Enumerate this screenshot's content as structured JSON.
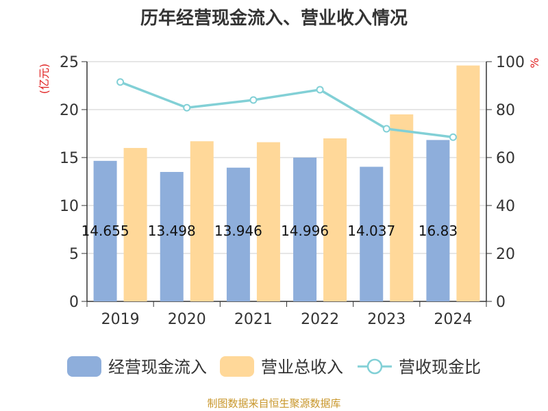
{
  "colors": {
    "bar1": "#8eaedb",
    "bar2": "#ffd899",
    "line": "#82d0d6",
    "axis": "#333333",
    "grid": "#cccccc",
    "unit": "#e02020",
    "source": "#c8962a"
  },
  "source": "制图数据来自恒生聚源数据库",
  "chart_data": {
    "type": "bar",
    "title": "历年经营现金流入、营业收入情况",
    "categories": [
      "2019",
      "2020",
      "2021",
      "2022",
      "2023",
      "2024"
    ],
    "series": [
      {
        "name": "经营现金流入",
        "type": "bar",
        "axis": "left",
        "values": [
          14.655,
          13.498,
          13.946,
          14.996,
          14.037,
          16.83
        ],
        "labels": [
          "14.655",
          "13.498",
          "13.946",
          "14.996",
          "14.037",
          "16.83"
        ]
      },
      {
        "name": "营业总收入",
        "type": "bar",
        "axis": "left",
        "values": [
          16.0,
          16.7,
          16.6,
          17.0,
          19.5,
          24.6
        ]
      },
      {
        "name": "营收现金比",
        "type": "line",
        "axis": "right",
        "values": [
          91.5,
          80.8,
          84.0,
          88.3,
          72.0,
          68.5
        ]
      }
    ],
    "y_left": {
      "label": "(亿元)",
      "min": 0,
      "max": 25,
      "ticks": [
        0,
        5,
        10,
        15,
        20,
        25
      ]
    },
    "y_right": {
      "label": "%",
      "min": 0,
      "max": 100,
      "ticks": [
        0,
        20,
        40,
        60,
        80,
        100
      ]
    },
    "legend": "bottom",
    "grid": true
  }
}
